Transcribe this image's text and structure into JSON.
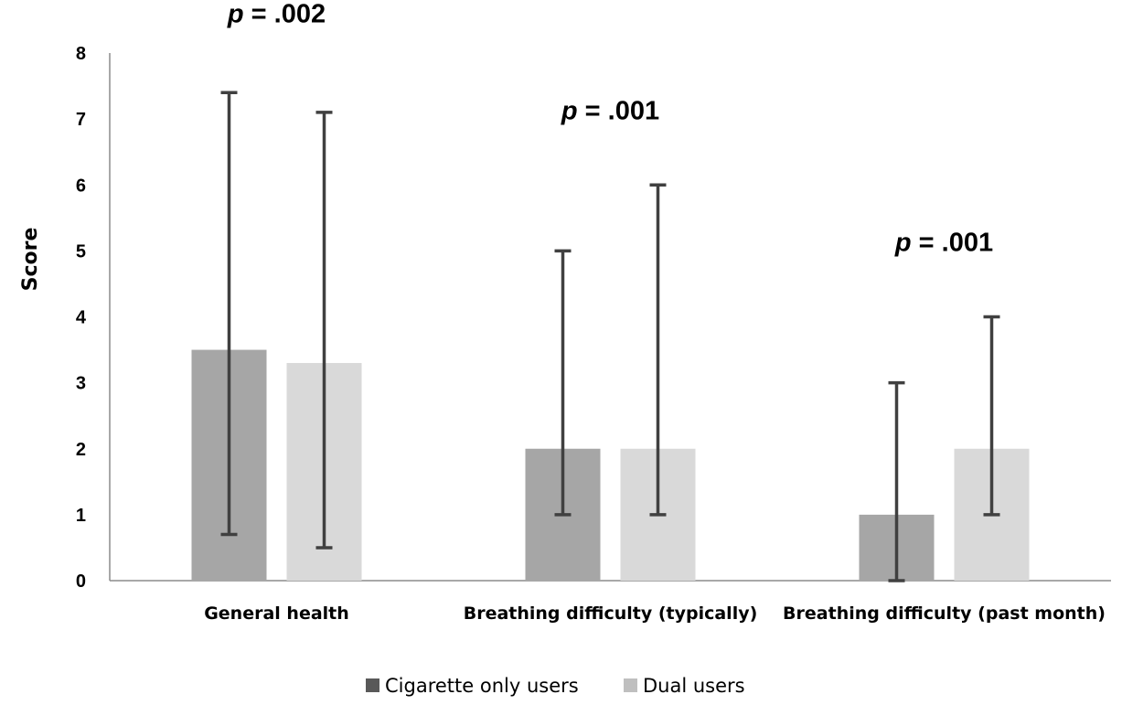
{
  "chart_data": {
    "type": "bar",
    "title": "",
    "xlabel": "",
    "ylabel": "Score",
    "ylim": [
      0,
      8
    ],
    "yticks": [
      0,
      1,
      2,
      3,
      4,
      5,
      6,
      7,
      8
    ],
    "categories": [
      "General health",
      "Breathing difficulty (typically)",
      "Breathing difficulty (past month)"
    ],
    "series": [
      {
        "name": "Cigarette only users",
        "color": "#a6a6a6",
        "values": [
          3.5,
          2,
          1
        ],
        "error_low": [
          0.7,
          1,
          0
        ],
        "error_high": [
          7.4,
          5,
          3
        ]
      },
      {
        "name": "Dual users",
        "color": "#d9d9d9",
        "values": [
          3.3,
          2,
          2
        ],
        "error_low": [
          0.5,
          1,
          1
        ],
        "error_high": [
          7.1,
          6,
          4
        ]
      }
    ],
    "annotations": [
      {
        "category": "General health",
        "prefix": "p",
        "text": " = .002"
      },
      {
        "category": "Breathing difficulty (typically)",
        "prefix": "p",
        "text": " = .001"
      },
      {
        "category": "Breathing difficulty (past month)",
        "prefix": "p",
        "text": " = .001"
      }
    ],
    "legend": {
      "placement": "bottom",
      "swatch_colors": [
        "#595959",
        "#bfbfbf"
      ]
    },
    "grid": false,
    "error_bar_color": "#404040",
    "axis_color": "#8c8c8c"
  }
}
